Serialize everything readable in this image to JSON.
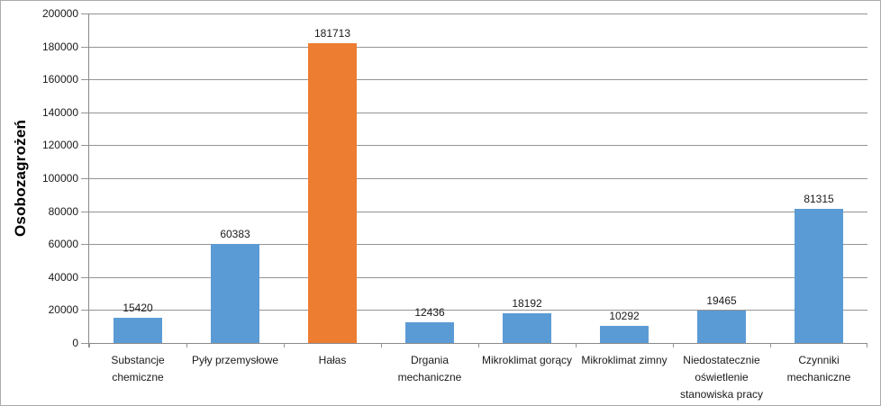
{
  "chart_data": {
    "type": "bar",
    "title": "",
    "xlabel": "",
    "ylabel": "Osobozagrożeń",
    "categories": [
      "Substancje chemiczne",
      "Pyły przemysłowe",
      "Hałas",
      "Drgania mechaniczne",
      "Mikroklimat gorący",
      "Mikroklimat zimny",
      "Niedostatecznie oświetlenie stanowiska pracy",
      "Czynniki mechaniczne"
    ],
    "values": [
      15420,
      60383,
      181713,
      12436,
      18192,
      10292,
      19465,
      81315
    ],
    "highlighted_index": 2,
    "ylim": [
      0,
      200000
    ],
    "ytick_step": 20000,
    "yticks": [
      0,
      20000,
      40000,
      60000,
      80000,
      100000,
      120000,
      140000,
      160000,
      180000,
      200000
    ],
    "grid": true,
    "legend": false
  },
  "colors": {
    "bar_default": "#5B9BD5",
    "bar_highlight": "#ED7D31",
    "gridline": "#949494",
    "axis": "#8A8A8A",
    "text": "#1A1A1A",
    "border": "#ABABAB",
    "background": "#FFFFFF"
  }
}
